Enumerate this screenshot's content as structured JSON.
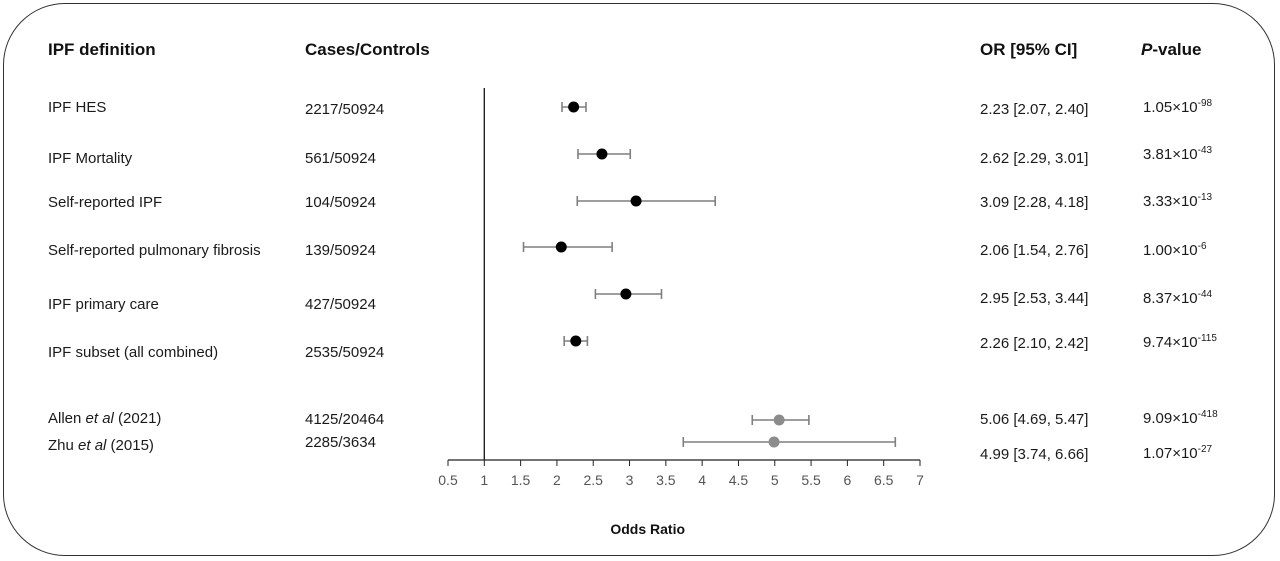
{
  "headers": {
    "definition": "IPF definition",
    "cases_controls": "Cases/Controls",
    "or_ci": "OR [95% CI]",
    "p_value_italic": "P",
    "p_value_rest": "-value"
  },
  "rows": [
    {
      "label": "IPF HES",
      "label_italic": "",
      "label_suffix": "",
      "cases_controls": "2217/50924",
      "or_ci": "2.23 [2.07, 2.40]",
      "p_mantissa": "1.05×10",
      "p_exp": "-98"
    },
    {
      "label": "IPF Mortality",
      "label_italic": "",
      "label_suffix": "",
      "cases_controls": "561/50924",
      "or_ci": "2.62 [2.29, 3.01]",
      "p_mantissa": "3.81×10",
      "p_exp": "-43"
    },
    {
      "label": "Self-reported IPF",
      "label_italic": "",
      "label_suffix": "",
      "cases_controls": "104/50924",
      "or_ci": "3.09 [2.28, 4.18]",
      "p_mantissa": "3.33×10",
      "p_exp": "-13"
    },
    {
      "label": "Self-reported pulmonary fibrosis",
      "label_italic": "",
      "label_suffix": "",
      "cases_controls": "139/50924",
      "or_ci": "2.06 [1.54, 2.76]",
      "p_mantissa": "1.00×10",
      "p_exp": "-6"
    },
    {
      "label": "IPF primary care",
      "label_italic": "",
      "label_suffix": "",
      "cases_controls": "427/50924",
      "or_ci": "2.95 [2.53, 3.44]",
      "p_mantissa": "8.37×10",
      "p_exp": "-44"
    },
    {
      "label": "IPF subset (all combined)",
      "label_italic": "",
      "label_suffix": "",
      "cases_controls": "2535/50924",
      "or_ci": "2.26 [2.10, 2.42]",
      "p_mantissa": "9.74×10",
      "p_exp": "-115"
    },
    {
      "label": "Allen ",
      "label_italic": "et al",
      "label_suffix": " (2021)",
      "cases_controls": "4125/20464",
      "or_ci": "5.06 [4.69, 5.47]",
      "p_mantissa": "9.09×10",
      "p_exp": "-418"
    },
    {
      "label": "Zhu ",
      "label_italic": "et al",
      "label_suffix": " (2015)",
      "cases_controls": "2285/3634",
      "or_ci": "4.99 [3.74, 6.66]",
      "p_mantissa": "1.07×10",
      "p_exp": "-27"
    }
  ],
  "chart_data": {
    "type": "scatter",
    "subtype": "forest-plot",
    "xlabel": "Odds Ratio",
    "xlim": [
      0.5,
      7
    ],
    "xticks": [
      "0.5",
      "1",
      "1.5",
      "2",
      "2.5",
      "3",
      "3.5",
      "4",
      "4.5",
      "5",
      "5.5",
      "6",
      "6.5",
      "7"
    ],
    "reference_line": 1,
    "series": [
      {
        "color": "#000000",
        "points": [
          {
            "label": "IPF HES",
            "or": 2.23,
            "lower": 2.07,
            "upper": 2.4
          },
          {
            "label": "IPF Mortality",
            "or": 2.62,
            "lower": 2.29,
            "upper": 3.01
          },
          {
            "label": "Self-reported IPF",
            "or": 3.09,
            "lower": 2.28,
            "upper": 4.18
          },
          {
            "label": "Self-reported pulmonary fibrosis",
            "or": 2.06,
            "lower": 1.54,
            "upper": 2.76
          },
          {
            "label": "IPF primary care",
            "or": 2.95,
            "lower": 2.53,
            "upper": 3.44
          },
          {
            "label": "IPF subset (all combined)",
            "or": 2.26,
            "lower": 2.1,
            "upper": 2.42
          }
        ]
      },
      {
        "color": "#8c8c8c",
        "points": [
          {
            "label": "Allen et al (2021)",
            "or": 5.06,
            "lower": 4.69,
            "upper": 5.47
          },
          {
            "label": "Zhu et al (2015)",
            "or": 4.99,
            "lower": 3.74,
            "upper": 6.66
          }
        ]
      }
    ],
    "colors": {
      "whisker": "#7f7f7f",
      "axis": "#222222"
    }
  }
}
